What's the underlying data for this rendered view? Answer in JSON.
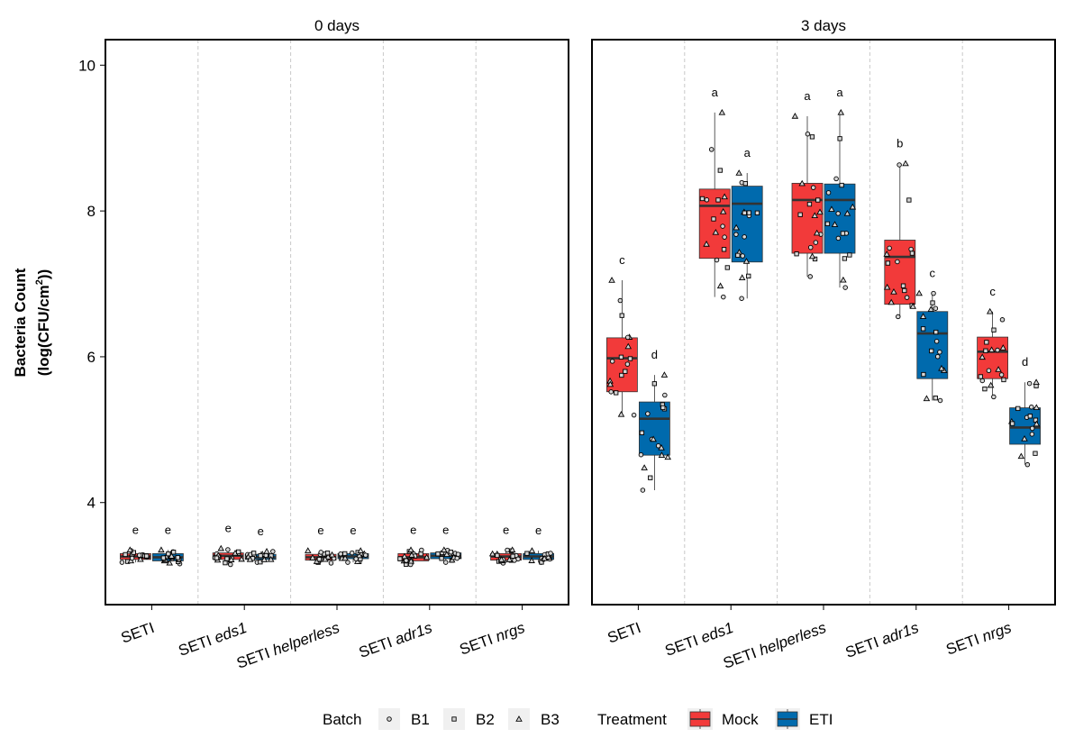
{
  "chart_data": {
    "type": "box",
    "ylabel_line1": "Bacteria Count",
    "ylabel_line2_prefix": "(log(CFU/cm",
    "ylabel_line2_sup": "2",
    "ylabel_line2_suffix": "))",
    "ylim": [
      2.6,
      10.35
    ],
    "y_ticks": [
      4,
      6,
      8,
      10
    ],
    "genotypes": [
      {
        "prefix": "SETI",
        "suffix": ""
      },
      {
        "prefix": "SETI ",
        "suffix": "eds1"
      },
      {
        "prefix": "SETI ",
        "suffix": "helperless"
      },
      {
        "prefix": "SETI ",
        "suffix": "adr1s"
      },
      {
        "prefix": "SETI ",
        "suffix": "nrgs"
      }
    ],
    "treatments": [
      "Mock",
      "ETI"
    ],
    "treatment_colors": {
      "Mock": "#F23A3A",
      "ETI": "#006AAD"
    },
    "facets": [
      {
        "title": "0 days",
        "groups": [
          {
            "genotype": 0,
            "treatment": "Mock",
            "min": 3.18,
            "q1": 3.22,
            "median": 3.26,
            "q3": 3.3,
            "max": 3.35,
            "letter": "e"
          },
          {
            "genotype": 0,
            "treatment": "ETI",
            "min": 3.16,
            "q1": 3.2,
            "median": 3.25,
            "q3": 3.3,
            "max": 3.35,
            "letter": "e"
          },
          {
            "genotype": 1,
            "treatment": "Mock",
            "min": 3.15,
            "q1": 3.22,
            "median": 3.27,
            "q3": 3.31,
            "max": 3.37,
            "letter": "e"
          },
          {
            "genotype": 1,
            "treatment": "ETI",
            "min": 3.18,
            "q1": 3.22,
            "median": 3.25,
            "q3": 3.29,
            "max": 3.33,
            "letter": "e"
          },
          {
            "genotype": 2,
            "treatment": "Mock",
            "min": 3.17,
            "q1": 3.21,
            "median": 3.25,
            "q3": 3.29,
            "max": 3.34,
            "letter": "e"
          },
          {
            "genotype": 2,
            "treatment": "ETI",
            "min": 3.18,
            "q1": 3.23,
            "median": 3.26,
            "q3": 3.3,
            "max": 3.34,
            "letter": "e"
          },
          {
            "genotype": 3,
            "treatment": "Mock",
            "min": 3.15,
            "q1": 3.2,
            "median": 3.25,
            "q3": 3.3,
            "max": 3.35,
            "letter": "e"
          },
          {
            "genotype": 3,
            "treatment": "ETI",
            "min": 3.18,
            "q1": 3.23,
            "median": 3.27,
            "q3": 3.31,
            "max": 3.35,
            "letter": "e"
          },
          {
            "genotype": 4,
            "treatment": "Mock",
            "min": 3.17,
            "q1": 3.21,
            "median": 3.26,
            "q3": 3.3,
            "max": 3.35,
            "letter": "e"
          },
          {
            "genotype": 4,
            "treatment": "ETI",
            "min": 3.18,
            "q1": 3.22,
            "median": 3.26,
            "q3": 3.3,
            "max": 3.34,
            "letter": "e"
          }
        ]
      },
      {
        "title": "3 days",
        "groups": [
          {
            "genotype": 0,
            "treatment": "Mock",
            "min": 5.2,
            "q1": 5.52,
            "median": 5.98,
            "q3": 6.26,
            "max": 7.05,
            "letter": "c"
          },
          {
            "genotype": 0,
            "treatment": "ETI",
            "min": 4.17,
            "q1": 4.65,
            "median": 5.15,
            "q3": 5.38,
            "max": 5.75,
            "letter": "d"
          },
          {
            "genotype": 1,
            "treatment": "Mock",
            "min": 6.82,
            "q1": 7.35,
            "median": 8.07,
            "q3": 8.3,
            "max": 9.35,
            "letter": "a"
          },
          {
            "genotype": 1,
            "treatment": "ETI",
            "min": 6.8,
            "q1": 7.3,
            "median": 8.1,
            "q3": 8.34,
            "max": 8.52,
            "letter": "a"
          },
          {
            "genotype": 2,
            "treatment": "Mock",
            "min": 7.1,
            "q1": 7.42,
            "median": 8.15,
            "q3": 8.38,
            "max": 9.3,
            "letter": "a"
          },
          {
            "genotype": 2,
            "treatment": "ETI",
            "min": 6.95,
            "q1": 7.42,
            "median": 8.15,
            "q3": 8.37,
            "max": 9.35,
            "letter": "a"
          },
          {
            "genotype": 3,
            "treatment": "Mock",
            "min": 6.55,
            "q1": 6.72,
            "median": 7.37,
            "q3": 7.6,
            "max": 8.65,
            "letter": "b"
          },
          {
            "genotype": 3,
            "treatment": "ETI",
            "min": 5.4,
            "q1": 5.7,
            "median": 6.32,
            "q3": 6.62,
            "max": 6.87,
            "letter": "c"
          },
          {
            "genotype": 4,
            "treatment": "Mock",
            "min": 5.45,
            "q1": 5.7,
            "median": 6.07,
            "q3": 6.27,
            "max": 6.62,
            "letter": "c"
          },
          {
            "genotype": 4,
            "treatment": "ETI",
            "min": 4.52,
            "q1": 4.8,
            "median": 5.03,
            "q3": 5.3,
            "max": 5.65,
            "letter": "d"
          }
        ]
      }
    ],
    "legend": {
      "position": "bottom",
      "batch_title": "Batch",
      "batch_items": [
        {
          "label": "B1",
          "shape": "circle"
        },
        {
          "label": "B2",
          "shape": "square"
        },
        {
          "label": "B3",
          "shape": "triangle"
        }
      ],
      "treatment_title": "Treatment",
      "treatment_items": [
        "Mock",
        "ETI"
      ]
    },
    "points_shown": true,
    "grid": false
  }
}
